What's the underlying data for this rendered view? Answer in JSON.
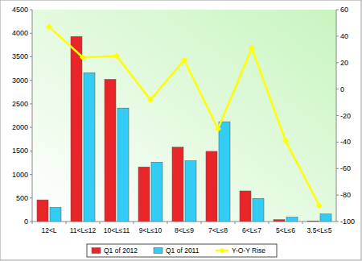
{
  "chart_data": {
    "type": "bar",
    "categories": [
      "12<L",
      "11<L≤12",
      "10<L≤11",
      "9<L≤10",
      "8<L≤9",
      "7<L≤8",
      "6<L≤7",
      "5<L≤6",
      "3.5<L≤5"
    ],
    "series": [
      {
        "name": "Q1 of 2012",
        "color": "#e8262a",
        "values": [
          460,
          3930,
          3020,
          1160,
          1580,
          1490,
          650,
          40,
          10
        ]
      },
      {
        "name": "Q1 of 2011",
        "color": "#33ccf5",
        "values": [
          300,
          3160,
          2410,
          1260,
          1290,
          2120,
          490,
          90,
          160
        ]
      },
      {
        "name": "Y-O-Y Rise",
        "type": "line",
        "axis": "y2",
        "color": "#ffff00",
        "marker": "diamond",
        "values": [
          47,
          24,
          25,
          -8,
          22,
          -30,
          31,
          -39,
          -88
        ]
      }
    ],
    "ylim": [
      0,
      4500
    ],
    "yticks": [
      0,
      500,
      1000,
      1500,
      2000,
      2500,
      3000,
      3500,
      4000,
      4500
    ],
    "y2lim": [
      -100,
      60
    ],
    "y2ticks": [
      -100,
      -80,
      -60,
      -40,
      -20,
      0,
      20,
      40,
      60
    ],
    "grid": false,
    "legend": "bottom"
  }
}
